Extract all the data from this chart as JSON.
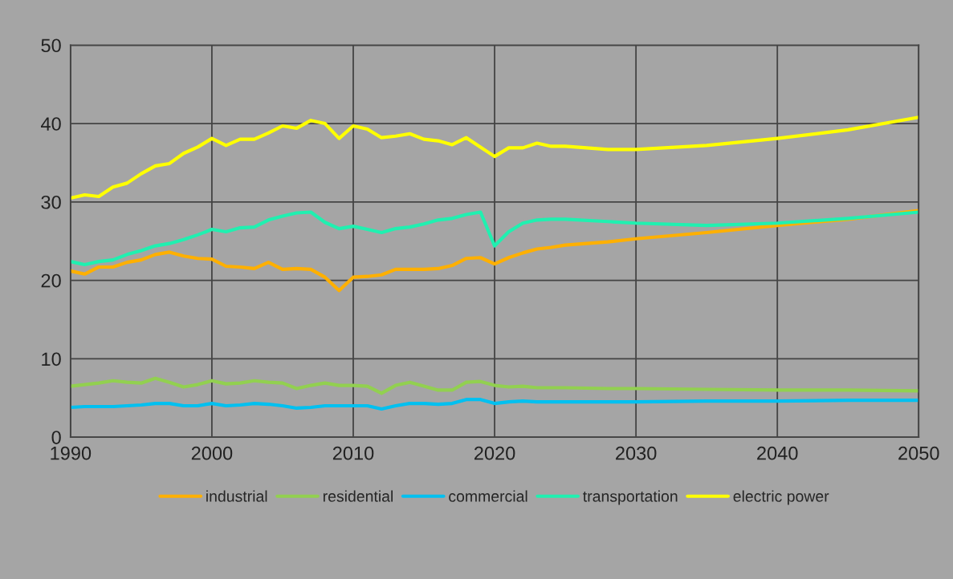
{
  "chart_data": {
    "type": "line",
    "x": [
      1990,
      1991,
      1992,
      1993,
      1994,
      1995,
      1996,
      1997,
      1998,
      1999,
      2000,
      2001,
      2002,
      2003,
      2004,
      2005,
      2006,
      2007,
      2008,
      2009,
      2010,
      2011,
      2012,
      2013,
      2014,
      2015,
      2016,
      2017,
      2018,
      2019,
      2020,
      2021,
      2022,
      2023,
      2024,
      2025,
      2028,
      2030,
      2035,
      2040,
      2045,
      2050
    ],
    "series": [
      {
        "name": "industrial",
        "color": "#ffb000",
        "values": [
          21.2,
          20.8,
          21.7,
          21.7,
          22.3,
          22.6,
          23.3,
          23.6,
          23.1,
          22.8,
          22.7,
          21.8,
          21.7,
          21.5,
          22.3,
          21.4,
          21.5,
          21.4,
          20.4,
          18.7,
          20.4,
          20.5,
          20.7,
          21.4,
          21.4,
          21.4,
          21.5,
          21.9,
          22.8,
          22.9,
          22.1,
          22.9,
          23.5,
          24.0,
          24.2,
          24.5,
          24.9,
          25.3,
          26.1,
          27.0,
          27.8,
          28.9
        ]
      },
      {
        "name": "residential",
        "color": "#92d050",
        "values": [
          6.5,
          6.7,
          6.9,
          7.2,
          7.0,
          6.9,
          7.5,
          7.0,
          6.4,
          6.7,
          7.2,
          6.8,
          6.9,
          7.2,
          7.0,
          6.9,
          6.2,
          6.6,
          6.9,
          6.6,
          6.6,
          6.5,
          5.6,
          6.6,
          7.0,
          6.5,
          6.0,
          6.0,
          7.0,
          7.1,
          6.6,
          6.4,
          6.5,
          6.3,
          6.3,
          6.3,
          6.2,
          6.2,
          6.1,
          6.0,
          6.0,
          5.9
        ]
      },
      {
        "name": "commercial",
        "color": "#00c0f0",
        "values": [
          3.8,
          3.9,
          3.9,
          3.9,
          4.0,
          4.1,
          4.3,
          4.3,
          4.0,
          4.0,
          4.3,
          4.0,
          4.1,
          4.3,
          4.2,
          4.0,
          3.7,
          3.8,
          4.0,
          4.0,
          4.0,
          4.0,
          3.6,
          4.0,
          4.3,
          4.3,
          4.2,
          4.3,
          4.8,
          4.8,
          4.3,
          4.5,
          4.6,
          4.5,
          4.5,
          4.5,
          4.5,
          4.5,
          4.6,
          4.6,
          4.7,
          4.7
        ]
      },
      {
        "name": "transportation",
        "color": "#20f0b0",
        "values": [
          22.4,
          22.0,
          22.4,
          22.6,
          23.3,
          23.8,
          24.4,
          24.7,
          25.2,
          25.8,
          26.5,
          26.2,
          26.7,
          26.8,
          27.7,
          28.2,
          28.6,
          28.7,
          27.4,
          26.6,
          26.9,
          26.5,
          26.1,
          26.6,
          26.8,
          27.2,
          27.7,
          27.9,
          28.4,
          28.7,
          24.4,
          26.2,
          27.3,
          27.7,
          27.8,
          27.8,
          27.5,
          27.3,
          27.0,
          27.3,
          27.9,
          28.7
        ]
      },
      {
        "name": "electric power",
        "color": "#ffff00",
        "values": [
          30.5,
          30.9,
          30.7,
          31.9,
          32.4,
          33.6,
          34.6,
          34.9,
          36.2,
          37.0,
          38.1,
          37.2,
          38.0,
          38.0,
          38.8,
          39.7,
          39.4,
          40.4,
          40.0,
          38.1,
          39.7,
          39.3,
          38.2,
          38.4,
          38.7,
          38.0,
          37.8,
          37.3,
          38.2,
          37.0,
          35.8,
          36.9,
          36.9,
          37.5,
          37.1,
          37.1,
          36.7,
          36.7,
          37.2,
          38.1,
          39.2,
          40.8
        ]
      }
    ],
    "xlim": [
      1990,
      2050
    ],
    "xticks": [
      1990,
      2000,
      2010,
      2020,
      2030,
      2040,
      2050
    ],
    "ylim": [
      0,
      50
    ],
    "yticks": [
      0,
      10,
      20,
      30,
      40,
      50
    ],
    "grid": true,
    "legend": "bottom",
    "marker": "none",
    "line_style": "solid"
  }
}
